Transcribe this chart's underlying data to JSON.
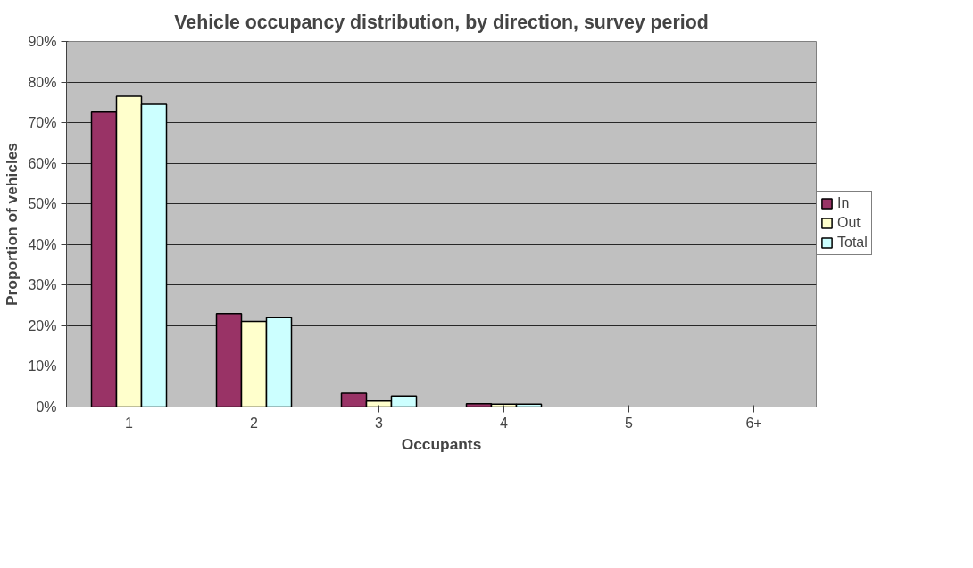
{
  "chart_data": {
    "type": "bar",
    "title": "Vehicle occupancy distribution, by direction, survey period",
    "xlabel": "Occupants",
    "ylabel": "Proportion of vehicles",
    "categories": [
      "1",
      "2",
      "3",
      "4",
      "5",
      "6+"
    ],
    "series": [
      {
        "name": "In",
        "color": "#993366",
        "values": [
          72.6,
          23.0,
          3.4,
          0.8,
          0,
          0
        ]
      },
      {
        "name": "Out",
        "color": "#ffffcc",
        "values": [
          76.5,
          21.1,
          1.5,
          0.7,
          0,
          0
        ]
      },
      {
        "name": "Total",
        "color": "#ccffff",
        "values": [
          74.5,
          22.0,
          2.7,
          0.7,
          0,
          0
        ]
      }
    ],
    "ylim": [
      0,
      90
    ],
    "yticks": [
      {
        "value": 0,
        "label": "0%"
      },
      {
        "value": 10,
        "label": "10%"
      },
      {
        "value": 20,
        "label": "20%"
      },
      {
        "value": 30,
        "label": "30%"
      },
      {
        "value": 40,
        "label": "40%"
      },
      {
        "value": 50,
        "label": "50%"
      },
      {
        "value": 60,
        "label": "60%"
      },
      {
        "value": 70,
        "label": "70%"
      },
      {
        "value": 80,
        "label": "80%"
      },
      {
        "value": 90,
        "label": "90%"
      }
    ],
    "grid": "y",
    "legend": "right"
  }
}
